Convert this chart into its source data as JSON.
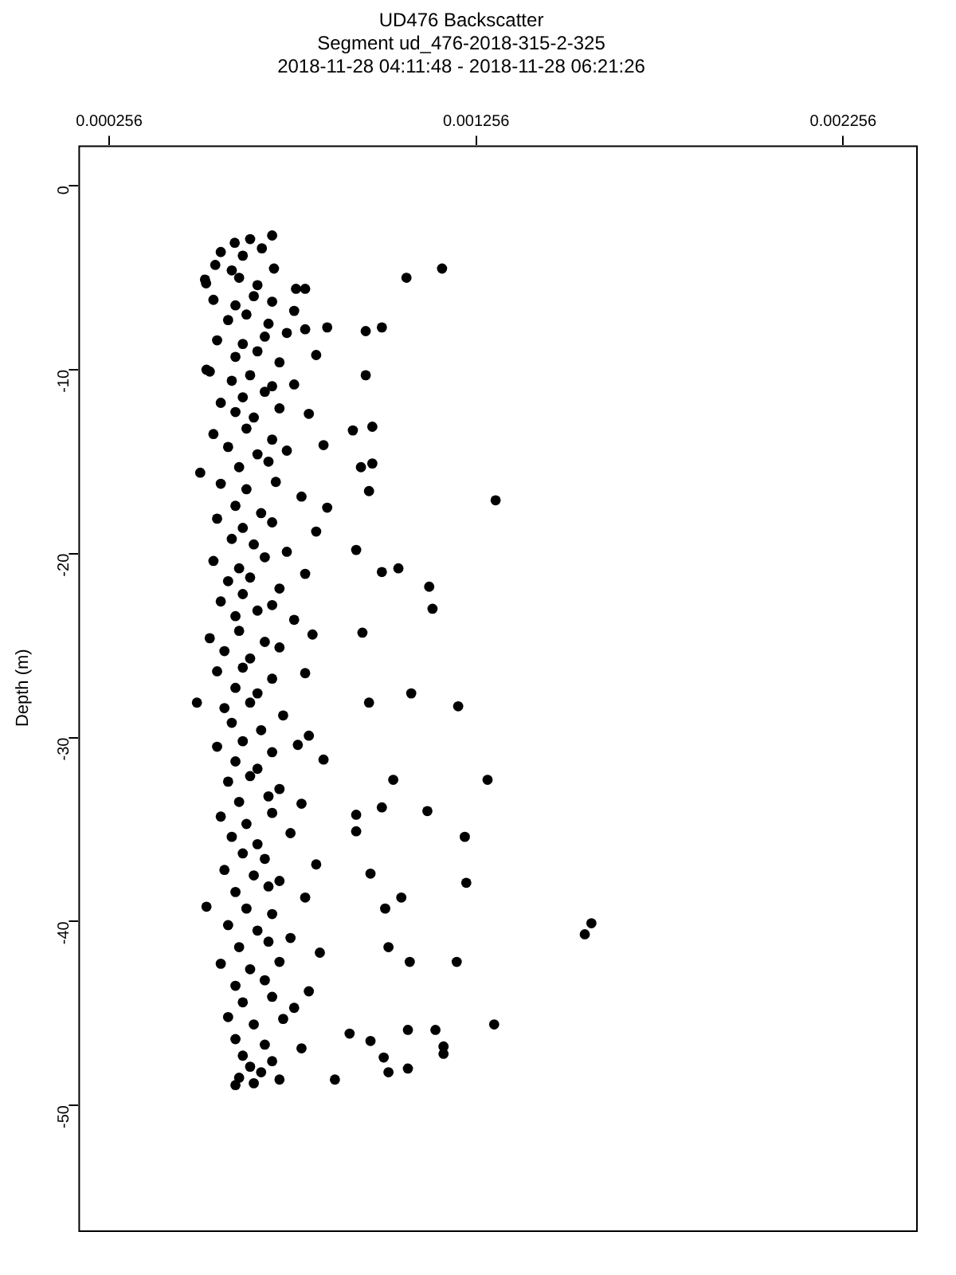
{
  "chart_data": {
    "type": "scatter",
    "title": "UD476 Backscatter",
    "subtitle": "Segment ud_476-2018-315-2-325\n2018-11-28 04:11:48 - 2018-11-28 06:21:26",
    "ylabel": "Depth (m)",
    "xlim": [
      0.000172,
      0.002455
    ],
    "xticks": [
      0.000256,
      0.001256,
      0.002256
    ],
    "ylim": [
      -56.8,
      2.2
    ],
    "yticks": [
      0,
      -10,
      -20,
      -30,
      -40,
      -50
    ],
    "grid": false,
    "legend": false,
    "marker": "circle",
    "series": [
      {
        "color": "#000000",
        "x": [
          0.001163,
          0.001066,
          0.001309,
          0.000999,
          0.000955,
          0.000955,
          0.000973,
          0.00092,
          0.000973,
          0.000942,
          0.000964,
          0.000929,
          0.000999,
          0.001044,
          0.001128,
          0.001137,
          0.000946,
          0.001079,
          0.001207,
          0.000964,
          0.001287,
          0.00103,
          0.000999,
          0.001123,
          0.001225,
          0.000929,
          0.000929,
          0.000968,
          0.001229,
          0.001052,
          0.001008,
          0.00157,
          0.001552,
          0.001017,
          0.001075,
          0.001203,
          0.001305,
          0.001145,
          0.00107,
          0.000968,
          0.001167,
          0.001167,
          0.00107,
          0.001017,
          0.001004,
          0.000871,
          0.000911,
          0.000495,
          0.000504,
          0.000521,
          0.000521,
          0.000517,
          0.000598,
          0.00064,
          0.0007,
          0.00056,
          0.00062,
          0.000672,
          0.000545,
          0.00059,
          0.000705,
          0.00052,
          0.00061,
          0.00066,
          0.000765,
          0.00079,
          0.00054,
          0.0006,
          0.00065,
          0.0007,
          0.00076,
          0.00058,
          0.00063,
          0.00069,
          0.00079,
          0.00085,
          0.00055,
          0.00062,
          0.00068,
          0.00074,
          0.0006,
          0.00066,
          0.00072,
          0.00082,
          0.00053,
          0.00059,
          0.00064,
          0.0007,
          0.00076,
          0.00062,
          0.00068,
          0.00056,
          0.0006,
          0.00065,
          0.00072,
          0.0008,
          0.00054,
          0.00063,
          0.0007,
          0.00058,
          0.00066,
          0.00074,
          0.00084,
          0.00061,
          0.00069,
          0.00056,
          0.00063,
          0.00071,
          0.00078,
          0.0006,
          0.00067,
          0.00085,
          0.00055,
          0.00062,
          0.0007,
          0.00082,
          0.00059,
          0.00065,
          0.00074,
          0.00054,
          0.00061,
          0.00068,
          0.00058,
          0.00064,
          0.00072,
          0.00079,
          0.00056,
          0.00062,
          0.0007,
          0.0006,
          0.00066,
          0.00076,
          0.00053,
          0.00061,
          0.00068,
          0.00081,
          0.00057,
          0.00064,
          0.00072,
          0.00055,
          0.00062,
          0.0007,
          0.00079,
          0.0006,
          0.00066,
          0.00057,
          0.00064,
          0.00073,
          0.00059,
          0.00067,
          0.0008,
          0.00055,
          0.00062,
          0.0007,
          0.00077,
          0.0006,
          0.00066,
          0.00084,
          0.00058,
          0.00064,
          0.00072,
          0.00061,
          0.00069,
          0.00078,
          0.00056,
          0.00063,
          0.0007,
          0.00059,
          0.00066,
          0.00075,
          0.00062,
          0.00068,
          0.00082,
          0.00057,
          0.00065,
          0.00072,
          0.0006,
          0.00069,
          0.00079,
          0.00063,
          0.0007,
          0.00058,
          0.00066,
          0.00075,
          0.00061,
          0.00069,
          0.00083,
          0.00056,
          0.00064,
          0.00072,
          0.0006,
          0.00068,
          0.0008,
          0.00062,
          0.0007,
          0.00076,
          0.00058,
          0.00065,
          0.00073,
          0.0006,
          0.00068,
          0.00078,
          0.00062,
          0.0007,
          0.00064,
          0.00061,
          0.00067,
          0.00072,
          0.0006,
          0.00065
        ],
        "values": [
          -4.5,
          -5.0,
          -17.1,
          -7.7,
          -7.9,
          -10.3,
          -13.1,
          -13.3,
          -15.1,
          -15.3,
          -16.6,
          -19.8,
          -21.0,
          -20.8,
          -21.8,
          -23.0,
          -24.3,
          -27.6,
          -28.3,
          -28.1,
          -32.3,
          -32.3,
          -33.8,
          -34.0,
          -35.4,
          -34.2,
          -35.1,
          -37.4,
          -37.9,
          -38.7,
          -39.3,
          -40.1,
          -40.7,
          -41.4,
          -42.2,
          -42.2,
          -45.6,
          -45.9,
          -45.9,
          -46.5,
          -46.8,
          -47.2,
          -48.0,
          -48.2,
          -47.4,
          -48.6,
          -46.1,
          -28.1,
          -15.6,
          -10.0,
          -39.2,
          -5.1,
          -3.1,
          -2.9,
          -2.7,
          -3.6,
          -3.8,
          -3.4,
          -4.3,
          -4.6,
          -4.5,
          -5.3,
          -5.0,
          -5.4,
          -5.6,
          -5.6,
          -6.2,
          -6.5,
          -6.0,
          -6.3,
          -6.8,
          -7.3,
          -7.0,
          -7.5,
          -7.8,
          -7.7,
          -8.4,
          -8.6,
          -8.2,
          -8.0,
          -9.3,
          -9.0,
          -9.6,
          -9.2,
          -10.1,
          -10.6,
          -10.3,
          -10.9,
          -10.8,
          -11.5,
          -11.2,
          -11.8,
          -12.3,
          -12.6,
          -12.1,
          -12.4,
          -13.5,
          -13.2,
          -13.8,
          -14.2,
          -14.6,
          -14.4,
          -14.1,
          -15.3,
          -15.0,
          -16.2,
          -16.5,
          -16.1,
          -16.9,
          -17.4,
          -17.8,
          -17.5,
          -18.1,
          -18.6,
          -18.3,
          -18.8,
          -19.2,
          -19.5,
          -19.9,
          -20.4,
          -20.8,
          -20.2,
          -21.5,
          -21.3,
          -21.9,
          -21.1,
          -22.6,
          -22.2,
          -22.8,
          -23.4,
          -23.1,
          -23.6,
          -24.6,
          -24.2,
          -24.8,
          -24.4,
          -25.3,
          -25.7,
          -25.1,
          -26.4,
          -26.2,
          -26.8,
          -26.5,
          -27.3,
          -27.6,
          -28.4,
          -28.1,
          -28.8,
          -29.2,
          -29.6,
          -29.9,
          -30.5,
          -30.2,
          -30.8,
          -30.4,
          -31.3,
          -31.7,
          -31.2,
          -32.4,
          -32.1,
          -32.8,
          -33.5,
          -33.2,
          -33.6,
          -34.3,
          -34.7,
          -34.1,
          -35.4,
          -35.8,
          -35.2,
          -36.3,
          -36.6,
          -36.9,
          -37.2,
          -37.5,
          -37.8,
          -38.4,
          -38.1,
          -38.7,
          -39.3,
          -39.6,
          -40.2,
          -40.5,
          -40.9,
          -41.4,
          -41.1,
          -41.7,
          -42.3,
          -42.6,
          -42.2,
          -43.5,
          -43.2,
          -43.8,
          -44.4,
          -44.1,
          -44.7,
          -45.2,
          -45.6,
          -45.3,
          -46.4,
          -46.7,
          -46.9,
          -47.3,
          -47.6,
          -47.9,
          -48.5,
          -48.2,
          -48.6,
          -48.9,
          -48.8
        ]
      }
    ]
  }
}
